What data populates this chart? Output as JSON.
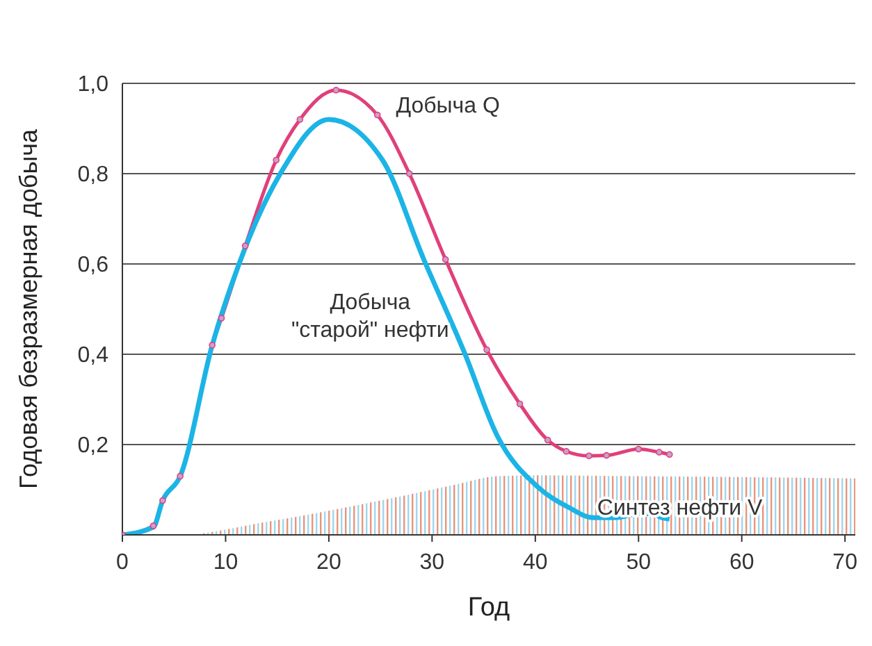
{
  "chart_data": {
    "type": "line",
    "xlabel": "Год",
    "ylabel": "Годовая безразмерная добыча",
    "xlim": [
      0,
      71
    ],
    "xticks": [
      0,
      10,
      20,
      30,
      40,
      50,
      60,
      70
    ],
    "ylim": [
      0,
      1
    ],
    "yticks": [
      {
        "value": 0.2,
        "label": "0,2"
      },
      {
        "value": 0.4,
        "label": "0,4"
      },
      {
        "value": 0.6,
        "label": "0,6"
      },
      {
        "value": 0.8,
        "label": "0,8"
      },
      {
        "value": 1,
        "label": "1,0"
      }
    ],
    "grid": "y",
    "series": [
      {
        "name": "Синтез нефти V",
        "type": "area",
        "color": "#e8957a",
        "marker": "none",
        "x": [
          7,
          9.6,
          13,
          18.5,
          23,
          27.3,
          32,
          36.3,
          40,
          50,
          60,
          71
        ],
        "values": [
          0,
          0.01,
          0.025,
          0.047,
          0.067,
          0.087,
          0.11,
          0.13,
          0.132,
          0.13,
          0.128,
          0.125
        ]
      },
      {
        "name": "Добыча Q",
        "color": "#e0407a",
        "marker": "circle",
        "x": [
          0,
          3,
          3.9,
          5.6,
          8.7,
          9.6,
          11.9,
          14.9,
          17.2,
          20.7,
          24.7,
          27.8,
          31.3,
          35.3,
          38.5,
          41.2,
          43,
          45.2,
          46.9,
          50,
          52,
          53
        ],
        "values": [
          0,
          0.02,
          0.076,
          0.13,
          0.42,
          0.48,
          0.64,
          0.83,
          0.92,
          0.985,
          0.93,
          0.8,
          0.61,
          0.41,
          0.29,
          0.21,
          0.185,
          0.175,
          0.176,
          0.19,
          0.183,
          0.178
        ]
      },
      {
        "name": "Добыча \"старой\" нефти",
        "color": "#1cb4e6",
        "marker": "none",
        "x": [
          0,
          3,
          3.9,
          5.6,
          8.7,
          11.3,
          15.3,
          20,
          25.2,
          29.2,
          33.2,
          36.3,
          40.3,
          43.3,
          45.6,
          47.8,
          50,
          51.3,
          52.3,
          53
        ],
        "values": [
          0,
          0.017,
          0.076,
          0.13,
          0.42,
          0.6,
          0.8,
          0.92,
          0.83,
          0.61,
          0.4,
          0.22,
          0.105,
          0.06,
          0.038,
          0.038,
          0.047,
          0.047,
          0.038,
          0.035
        ]
      }
    ]
  }
}
